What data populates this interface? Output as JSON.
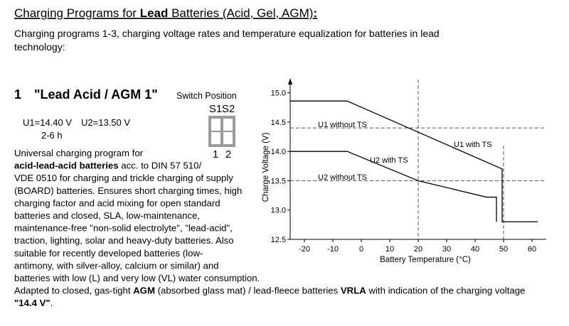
{
  "header": {
    "title": [
      {
        "text": "Charging Programs for ",
        "bold": false
      },
      {
        "text": "Lead",
        "bold": true
      },
      {
        "text": " Batteries (Acid, Gel, AGM)",
        "bold": false
      },
      {
        "text": ":",
        "bold": true
      }
    ],
    "intro": [
      "Charging programs 1-3, charging voltage rates and temperature equalization for batteries in lead",
      "technology:"
    ]
  },
  "program": {
    "number": "1",
    "name": "\"Lead Acid / AGM 1\"",
    "switch": {
      "label": "Switch Position",
      "names": [
        "S1",
        "S2"
      ],
      "positions": [
        "1",
        "2"
      ]
    },
    "settings": [
      "U1=14.40 V",
      "U2=13.50 V",
      "2-6 h"
    ],
    "description": [
      [
        {
          "text": "Universal charging program for",
          "bold": false
        }
      ],
      [
        {
          "text": "acid-lead-acid batteries",
          "bold": true
        },
        {
          "text": " acc. to DIN 57 510/",
          "bold": false
        }
      ],
      [
        {
          "text": "VDE 0510 for charging and trickle charging of supply",
          "bold": false
        }
      ],
      [
        {
          "text": "(BOARD) batteries. Ensures short charging times, high",
          "bold": false
        }
      ],
      [
        {
          "text": "charging factor and acid mixing for open standard",
          "bold": false
        }
      ],
      [
        {
          "text": "batteries and closed, SLA, low-maintenance,",
          "bold": false
        }
      ],
      [
        {
          "text": "maintenance-free \"non-solid electrolyte\", \"lead-acid\",",
          "bold": false
        }
      ],
      [
        {
          "text": "traction, lighting, solar and heavy-duty batteries. Also",
          "bold": false
        }
      ],
      [
        {
          "text": "suitable for recently developed batteries (low-",
          "bold": false
        }
      ],
      [
        {
          "text": "antimony, with silver-alloy, calcium or similar) and",
          "bold": false
        }
      ],
      [
        {
          "text": "batteries with low (L) and very low (VL) water consumption.",
          "bold": false
        }
      ],
      [
        {
          "text": "Adapted to closed, gas-tight ",
          "bold": false
        },
        {
          "text": "AGM",
          "bold": true
        },
        {
          "text": " (absorbed glass mat) / lead-fleece batteries ",
          "bold": false
        },
        {
          "text": "VRLA",
          "bold": true
        },
        {
          "text": " with indication of the charging voltage",
          "bold": false
        }
      ],
      [
        {
          "text": "\"14.4 V\"",
          "bold": true
        },
        {
          "text": ".",
          "bold": false
        }
      ]
    ]
  },
  "chart_data": {
    "type": "line",
    "x_label": "Battery Temperature (°C)",
    "y_label": "Charge Voltage (V)",
    "xlim": [
      -25,
      65
    ],
    "ylim": [
      12.5,
      15.25
    ],
    "xticks": [
      -20,
      -10,
      0,
      10,
      20,
      30,
      40,
      50,
      60
    ],
    "yticks": [
      {
        "value": 12.5,
        "label": "12.5"
      },
      {
        "value": 13,
        "label": "13.0"
      },
      {
        "value": 13.5,
        "label": "13.5"
      },
      {
        "value": 14,
        "label": "14.0"
      },
      {
        "value": 14.5,
        "label": "14.5"
      },
      {
        "value": 15,
        "label": "15.0"
      }
    ],
    "series": [
      {
        "name": "U1 with TS",
        "color": "#000000",
        "x": [
          -25,
          -5,
          49.5,
          49.5,
          62
        ],
        "values": [
          14.86,
          14.86,
          13.7,
          12.8,
          12.8
        ]
      },
      {
        "name": "U2 with TS",
        "color": "#000000",
        "x": [
          -25,
          -5,
          20,
          44,
          47.5,
          47.5
        ],
        "values": [
          14.0,
          14.0,
          13.5,
          13.22,
          13.22,
          12.8
        ]
      }
    ],
    "hlines": [
      {
        "value": 14.4,
        "label": "U1 without TS"
      },
      {
        "value": 13.5,
        "label": "U2 without TS"
      }
    ],
    "vlines": [
      20,
      50
    ]
  }
}
